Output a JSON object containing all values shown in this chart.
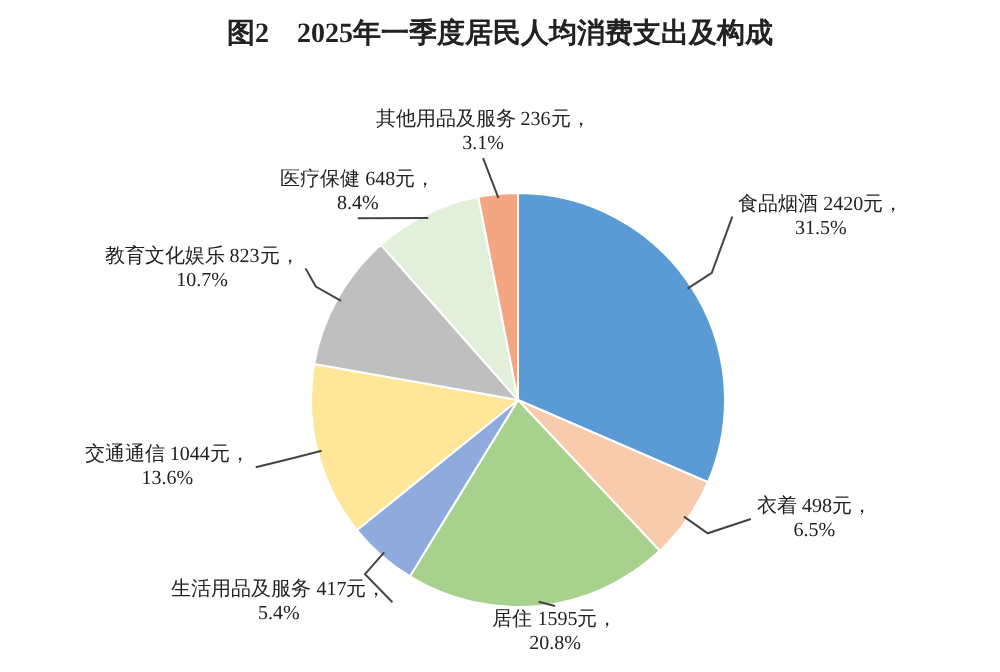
{
  "chart_data": {
    "type": "pie",
    "title": "图2　2025年一季度居民人均消费支出及构成",
    "categories": [
      "食品烟酒",
      "衣着",
      "居住",
      "生活用品及服务",
      "交通通信",
      "教育文化娱乐",
      "医疗保健",
      "其他用品及服务"
    ],
    "values": [
      2420,
      498,
      1595,
      417,
      1044,
      823,
      648,
      236
    ],
    "colors": [
      "#5b9bd5",
      "#f8cbad",
      "#a9d18e",
      "#8faadc",
      "#ffe699",
      "#bfbfbf",
      "#e2efda",
      "#f4a582"
    ],
    "value_labels": [
      "2420元，\n31.5%",
      "498元，\n6.5%",
      "1595元，\n20.8%",
      "417元，\n5.4%",
      "1044元，\n13.6%",
      "823元，\n10.7%",
      "648元，\n8.4%",
      "236元，\n3.1%"
    ]
  }
}
